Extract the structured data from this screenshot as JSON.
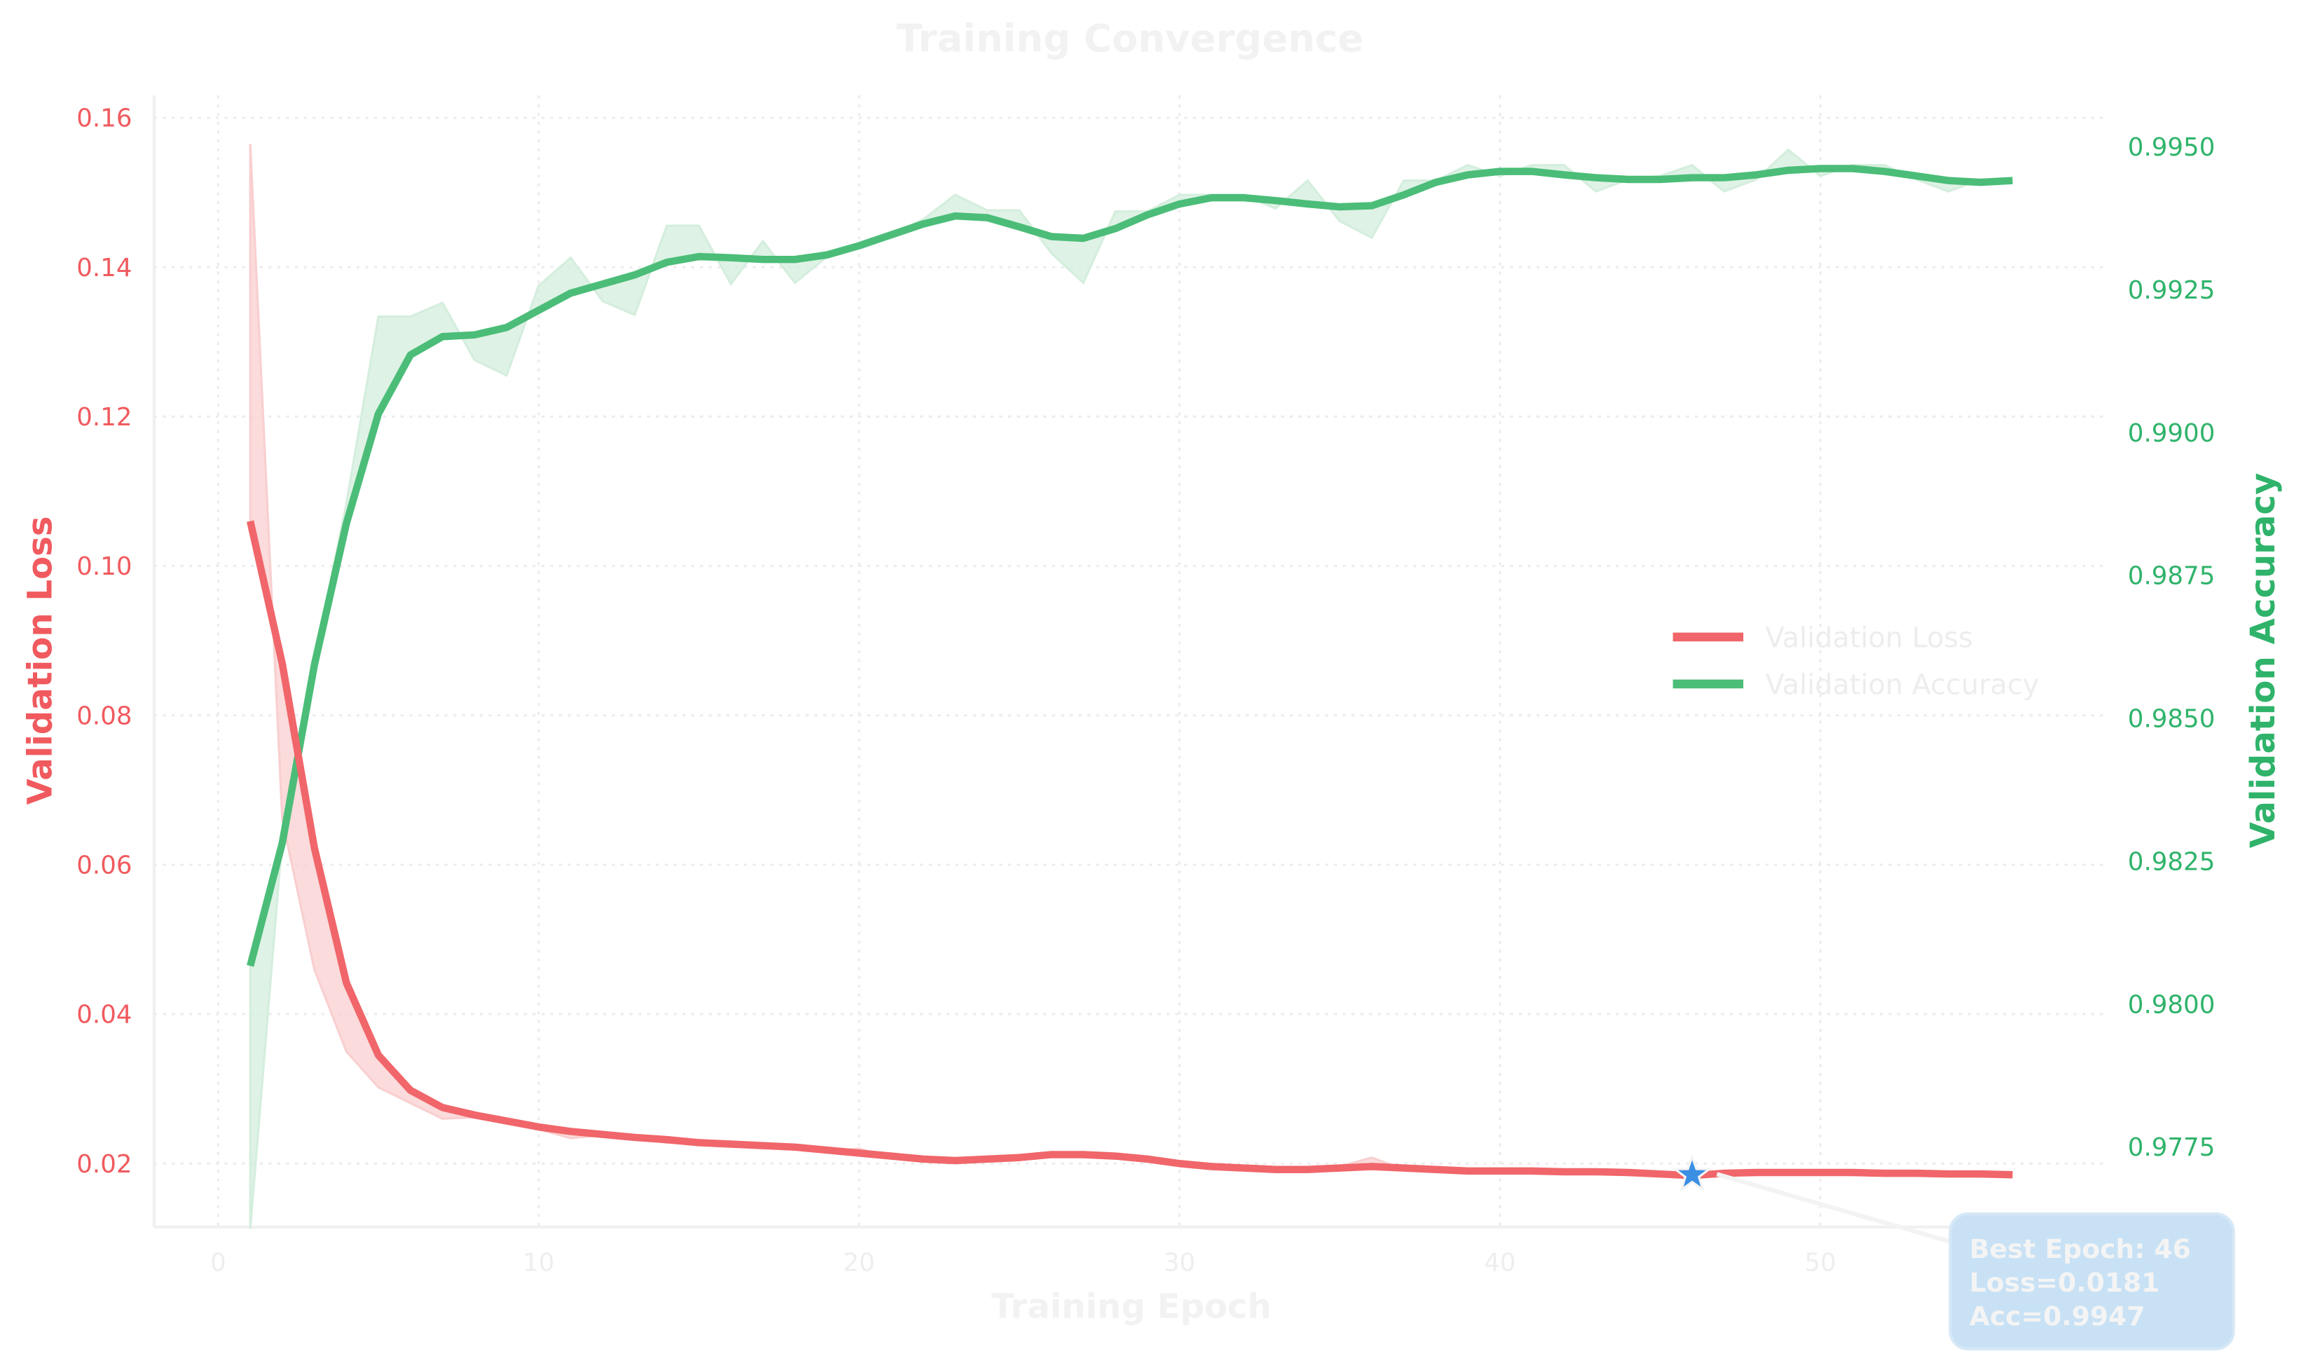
{
  "chart_data": {
    "type": "line",
    "title": "Training Convergence",
    "xlabel": "Training Epoch",
    "ylabel_left": "Validation Loss",
    "ylabel_right": "Validation Accuracy",
    "xlim": [
      -2,
      59
    ],
    "ylim_left": [
      0.0115,
      0.163
    ],
    "ylim_right": [
      0.9761,
      0.9959
    ],
    "x_ticks": [
      0,
      10,
      20,
      30,
      40,
      50
    ],
    "y_ticks_left": [
      "0.02",
      "0.04",
      "0.06",
      "0.08",
      "0.10",
      "0.12",
      "0.14",
      "0.16"
    ],
    "y_ticks_right": [
      "0.9775",
      "0.9800",
      "0.9825",
      "0.9850",
      "0.9875",
      "0.9900",
      "0.9925",
      "0.9950"
    ],
    "grid": true,
    "legend_position": "center-right",
    "colors": {
      "loss": "#f0666a",
      "loss_band": "#f9cfd0",
      "accuracy": "#4bbd78",
      "accuracy_band": "#d4eedd",
      "left_axis": "#f05a5e",
      "right_axis": "#2fb36a",
      "best_marker": "#3b8fe3",
      "annotation_box": "#c8e1f5"
    },
    "epochs": [
      1,
      2,
      3,
      4,
      5,
      6,
      7,
      8,
      9,
      10,
      11,
      12,
      13,
      14,
      15,
      16,
      17,
      18,
      19,
      20,
      21,
      22,
      23,
      24,
      25,
      26,
      27,
      28,
      29,
      30,
      31,
      32,
      33,
      34,
      35,
      36,
      37,
      38,
      39,
      40,
      41,
      42,
      43,
      44,
      45,
      46,
      47,
      48,
      49,
      50,
      51,
      52,
      53,
      54,
      55,
      56
    ],
    "series": [
      {
        "name": "Validation Loss",
        "axis": "left",
        "values": [
          0.106,
          0.0869,
          0.0623,
          0.0442,
          0.0345,
          0.0298,
          0.0275,
          0.0265,
          0.0257,
          0.0249,
          0.0243,
          0.0239,
          0.0235,
          0.0232,
          0.0228,
          0.0226,
          0.0224,
          0.0222,
          0.0218,
          0.0214,
          0.021,
          0.0206,
          0.0204,
          0.0206,
          0.0208,
          0.0212,
          0.0212,
          0.021,
          0.0206,
          0.02,
          0.0196,
          0.0194,
          0.0192,
          0.0192,
          0.0194,
          0.0196,
          0.0194,
          0.0192,
          0.019,
          0.019,
          0.019,
          0.0189,
          0.0189,
          0.0188,
          0.0186,
          0.0184,
          0.0187,
          0.0188,
          0.0188,
          0.0188,
          0.0188,
          0.0187,
          0.0187,
          0.0186,
          0.0186,
          0.0185
        ],
        "raw": [
          0.1565,
          0.066,
          0.046,
          0.035,
          0.0302,
          0.0281,
          0.026,
          0.0262,
          0.0254,
          0.0246,
          0.0234,
          0.0238,
          0.0234,
          0.0228,
          0.0226,
          0.0224,
          0.0222,
          0.022,
          0.0216,
          0.022,
          0.0208,
          0.0204,
          0.0202,
          0.0208,
          0.021,
          0.0214,
          0.021,
          0.0208,
          0.0204,
          0.0198,
          0.0194,
          0.0192,
          0.019,
          0.0192,
          0.0196,
          0.0208,
          0.0192,
          0.019,
          0.0188,
          0.0188,
          0.0189,
          0.0188,
          0.0188,
          0.0187,
          0.0184,
          0.0181,
          0.0188,
          0.0189,
          0.0188,
          0.0189,
          0.0187,
          0.0186,
          0.0187,
          0.0185,
          0.0186,
          0.0185
        ]
      },
      {
        "name": "Validation Accuracy",
        "axis": "right",
        "values": [
          0.98067,
          0.98282,
          0.98593,
          0.98841,
          0.99033,
          0.99136,
          0.99168,
          0.99171,
          0.99184,
          0.99214,
          0.99244,
          0.9926,
          0.99276,
          0.99298,
          0.99308,
          0.99306,
          0.99303,
          0.99303,
          0.99311,
          0.99327,
          0.99346,
          0.99365,
          0.99379,
          0.99376,
          0.9936,
          0.99343,
          0.9934,
          0.99357,
          0.99381,
          0.994,
          0.99411,
          0.99411,
          0.99406,
          0.994,
          0.99395,
          0.99397,
          0.99416,
          0.99438,
          0.99451,
          0.99457,
          0.99457,
          0.99451,
          0.99446,
          0.99443,
          0.99443,
          0.99446,
          0.99446,
          0.99451,
          0.99459,
          0.99462,
          0.99462,
          0.99457,
          0.99449,
          0.99441,
          0.99438,
          0.99441
        ],
        "raw": [
          0.97607,
          0.9829,
          0.986,
          0.98876,
          0.99203,
          0.99203,
          0.99227,
          0.99127,
          0.991,
          0.99257,
          0.99306,
          0.9923,
          0.99206,
          0.99362,
          0.99362,
          0.9926,
          0.99335,
          0.99262,
          0.99308,
          0.99327,
          0.99346,
          0.99373,
          0.99416,
          0.99389,
          0.99389,
          0.99314,
          0.99262,
          0.99387,
          0.99387,
          0.99416,
          0.99416,
          0.99416,
          0.99392,
          0.99441,
          0.9937,
          0.99341,
          0.99441,
          0.99441,
          0.99468,
          0.99449,
          0.99468,
          0.99468,
          0.99422,
          0.99443,
          0.99449,
          0.99468,
          0.99422,
          0.99443,
          0.99495,
          0.99449,
          0.99468,
          0.99468,
          0.99443,
          0.99422,
          0.99443,
          0.99441
        ]
      }
    ],
    "best": {
      "epoch": 46,
      "loss": 0.0181,
      "acc": 0.9947
    },
    "annotation": {
      "line1": "Best Epoch: 46",
      "line2": "Loss=0.0181",
      "line3": "Acc=0.9947"
    }
  }
}
